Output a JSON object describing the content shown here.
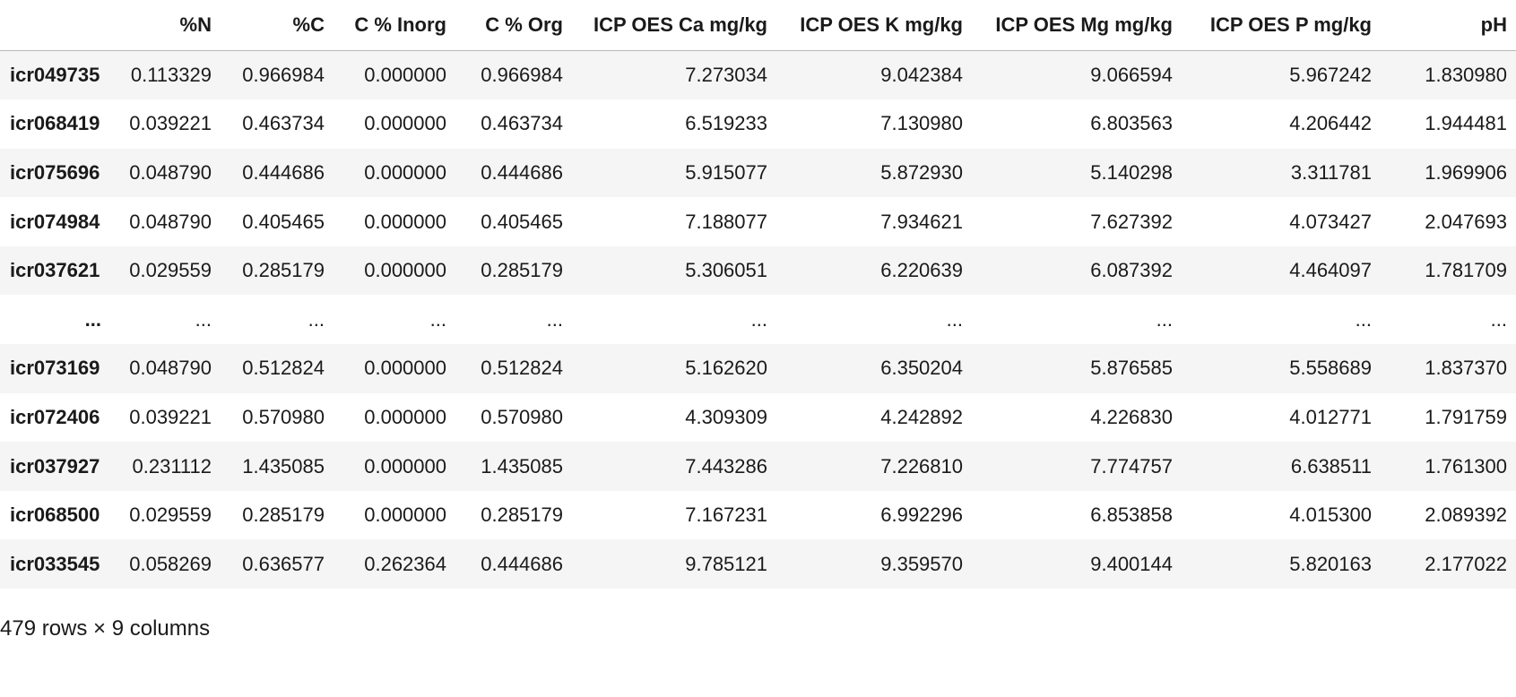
{
  "table": {
    "columns": [
      "",
      "%N",
      "%C",
      "C % Inorg",
      "C % Org",
      "ICP OES Ca mg/kg",
      "ICP OES K mg/kg",
      "ICP OES Mg mg/kg",
      "ICP OES P mg/kg",
      "pH"
    ],
    "rows": [
      {
        "label": "icr049735",
        "values": [
          "0.113329",
          "0.966984",
          "0.000000",
          "0.966984",
          "7.273034",
          "9.042384",
          "9.066594",
          "5.967242",
          "1.830980"
        ]
      },
      {
        "label": "icr068419",
        "values": [
          "0.039221",
          "0.463734",
          "0.000000",
          "0.463734",
          "6.519233",
          "7.130980",
          "6.803563",
          "4.206442",
          "1.944481"
        ]
      },
      {
        "label": "icr075696",
        "values": [
          "0.048790",
          "0.444686",
          "0.000000",
          "0.444686",
          "5.915077",
          "5.872930",
          "5.140298",
          "3.311781",
          "1.969906"
        ]
      },
      {
        "label": "icr074984",
        "values": [
          "0.048790",
          "0.405465",
          "0.000000",
          "0.405465",
          "7.188077",
          "7.934621",
          "7.627392",
          "4.073427",
          "2.047693"
        ]
      },
      {
        "label": "icr037621",
        "values": [
          "0.029559",
          "0.285179",
          "0.000000",
          "0.285179",
          "5.306051",
          "6.220639",
          "6.087392",
          "4.464097",
          "1.781709"
        ]
      },
      {
        "label": "...",
        "values": [
          "...",
          "...",
          "...",
          "...",
          "...",
          "...",
          "...",
          "...",
          "..."
        ]
      },
      {
        "label": "icr073169",
        "values": [
          "0.048790",
          "0.512824",
          "0.000000",
          "0.512824",
          "5.162620",
          "6.350204",
          "5.876585",
          "5.558689",
          "1.837370"
        ]
      },
      {
        "label": "icr072406",
        "values": [
          "0.039221",
          "0.570980",
          "0.000000",
          "0.570980",
          "4.309309",
          "4.242892",
          "4.226830",
          "4.012771",
          "1.791759"
        ]
      },
      {
        "label": "icr037927",
        "values": [
          "0.231112",
          "1.435085",
          "0.000000",
          "1.435085",
          "7.443286",
          "7.226810",
          "7.774757",
          "6.638511",
          "1.761300"
        ]
      },
      {
        "label": "icr068500",
        "values": [
          "0.029559",
          "0.285179",
          "0.000000",
          "0.285179",
          "7.167231",
          "6.992296",
          "6.853858",
          "4.015300",
          "2.089392"
        ]
      },
      {
        "label": "icr033545",
        "values": [
          "0.058269",
          "0.636577",
          "0.262364",
          "0.444686",
          "9.785121",
          "9.359570",
          "9.400144",
          "5.820163",
          "2.177022"
        ]
      }
    ]
  },
  "caption": "479 rows × 9 columns"
}
